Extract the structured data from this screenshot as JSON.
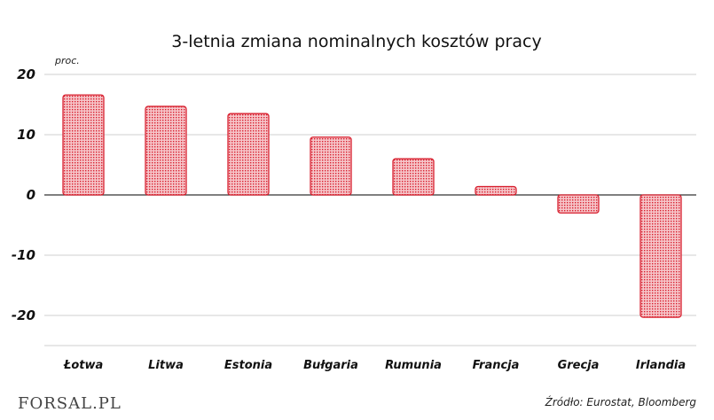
{
  "chart_data": {
    "type": "bar",
    "title": "3-letnia zmiana nominalnych kosztów pracy",
    "ylabel": "proc.",
    "xlabel": "",
    "categories": [
      "Łotwa",
      "Litwa",
      "Estonia",
      "Bułgaria",
      "Rumunia",
      "Francja",
      "Grecja",
      "Irlandia"
    ],
    "values": [
      16.6,
      14.7,
      13.5,
      9.6,
      6.0,
      1.4,
      -3.0,
      -20.3
    ],
    "ylim": [
      -25,
      20
    ],
    "yticks": [
      20,
      10,
      0,
      -10,
      -20
    ],
    "ytick_labels": [
      "20",
      "10",
      "0",
      "-10",
      "-20"
    ],
    "grid": true,
    "bar_color": "#d8202f",
    "bar_fill_color": "#f3a9b0"
  },
  "footer": {
    "source": "Źródło: Eurostat, Bloomberg",
    "logo": "FORSAL.PL"
  }
}
